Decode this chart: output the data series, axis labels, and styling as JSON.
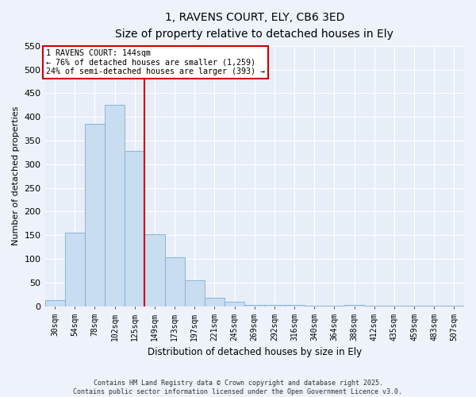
{
  "title": "1, RAVENS COURT, ELY, CB6 3ED",
  "subtitle": "Size of property relative to detached houses in Ely",
  "xlabel": "Distribution of detached houses by size in Ely",
  "ylabel": "Number of detached properties",
  "bar_color": "#c9ddf0",
  "bar_edge_color": "#7bafd4",
  "bg_color": "#e8eef8",
  "fig_bg_color": "#eef2fa",
  "grid_color": "#ffffff",
  "categories": [
    "30sqm",
    "54sqm",
    "78sqm",
    "102sqm",
    "125sqm",
    "149sqm",
    "173sqm",
    "197sqm",
    "221sqm",
    "245sqm",
    "269sqm",
    "292sqm",
    "316sqm",
    "340sqm",
    "364sqm",
    "388sqm",
    "412sqm",
    "435sqm",
    "459sqm",
    "483sqm",
    "507sqm"
  ],
  "values": [
    13,
    156,
    385,
    425,
    328,
    153,
    103,
    55,
    18,
    10,
    3,
    3,
    3,
    1,
    2,
    3,
    1,
    2,
    2,
    1,
    2
  ],
  "ylim": [
    0,
    550
  ],
  "yticks": [
    0,
    50,
    100,
    150,
    200,
    250,
    300,
    350,
    400,
    450,
    500,
    550
  ],
  "vline_index": 4.5,
  "vline_color": "#cc0000",
  "annotation_title": "1 RAVENS COURT: 144sqm",
  "annotation_line1": "← 76% of detached houses are smaller (1,259)",
  "annotation_line2": "24% of semi-detached houses are larger (393) →",
  "annotation_box_color": "#cc0000",
  "footer_line1": "Contains HM Land Registry data © Crown copyright and database right 2025.",
  "footer_line2": "Contains public sector information licensed under the Open Government Licence v3.0."
}
